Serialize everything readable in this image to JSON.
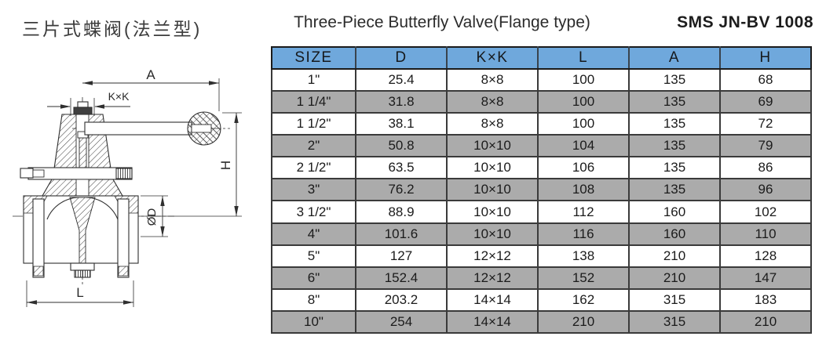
{
  "header": {
    "title_cn": "三片式蝶阀(法兰型)",
    "title_en": "Three-Piece Butterfly Valve(Flange type)",
    "model_code": "SMS JN-BV 1008"
  },
  "drawing": {
    "dim_a": "A",
    "dim_kxk": "K×K",
    "dim_h": "H",
    "dim_d": "ØD",
    "dim_l": "L"
  },
  "table": {
    "headers": [
      "SIZE",
      "D",
      "K×K",
      "L",
      "A",
      "H"
    ],
    "rows": [
      [
        "1\"",
        "25.4",
        "8×8",
        "100",
        "135",
        "68"
      ],
      [
        "1 1/4\"",
        "31.8",
        "8×8",
        "100",
        "135",
        "69"
      ],
      [
        "1 1/2\"",
        "38.1",
        "8×8",
        "100",
        "135",
        "72"
      ],
      [
        "2\"",
        "50.8",
        "10×10",
        "104",
        "135",
        "79"
      ],
      [
        "2 1/2\"",
        "63.5",
        "10×10",
        "106",
        "135",
        "86"
      ],
      [
        "3\"",
        "76.2",
        "10×10",
        "108",
        "135",
        "96"
      ],
      [
        "3 1/2\"",
        "88.9",
        "10×10",
        "112",
        "160",
        "102"
      ],
      [
        "4\"",
        "101.6",
        "10×10",
        "116",
        "160",
        "110"
      ],
      [
        "5\"",
        "127",
        "12×12",
        "138",
        "210",
        "128"
      ],
      [
        "6\"",
        "152.4",
        "12×12",
        "152",
        "210",
        "147"
      ],
      [
        "8\"",
        "203.2",
        "14×14",
        "162",
        "315",
        "183"
      ],
      [
        "10\"",
        "254",
        "14×14",
        "210",
        "315",
        "210"
      ]
    ]
  },
  "colors": {
    "header_bg": "#6fa8dc",
    "alt_row_bg": "#ababab"
  }
}
